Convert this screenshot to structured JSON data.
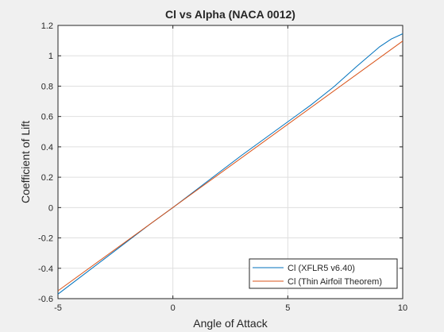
{
  "chart_data": {
    "type": "line",
    "title": "Cl vs Alpha (NACA 0012)",
    "xlabel": "Angle of Attack",
    "ylabel": "Coefficient of Lift",
    "xlim": [
      -5,
      10
    ],
    "ylim": [
      -0.6,
      1.2
    ],
    "xticks": [
      -5,
      0,
      5,
      10
    ],
    "yticks": [
      -0.6,
      -0.4,
      -0.2,
      0,
      0.2,
      0.4,
      0.6,
      0.8,
      1,
      1.2
    ],
    "grid": true,
    "legend_position": "bottom-right",
    "series": [
      {
        "name": "Cl (XFLR5 v6.40)",
        "color": "#0072BD",
        "x": [
          -5,
          -4,
          -3,
          -2,
          -1,
          0,
          1,
          2,
          3,
          4,
          5,
          6,
          7,
          8,
          9,
          9.5,
          10
        ],
        "y": [
          -0.57,
          -0.455,
          -0.34,
          -0.225,
          -0.11,
          0,
          0.115,
          0.23,
          0.345,
          0.455,
          0.565,
          0.675,
          0.795,
          0.93,
          1.06,
          1.11,
          1.145
        ]
      },
      {
        "name": "Cl (Thin Airfoil Theorem)",
        "color": "#D95319",
        "x": [
          -5,
          10
        ],
        "y": [
          -0.548,
          1.097
        ]
      }
    ]
  }
}
